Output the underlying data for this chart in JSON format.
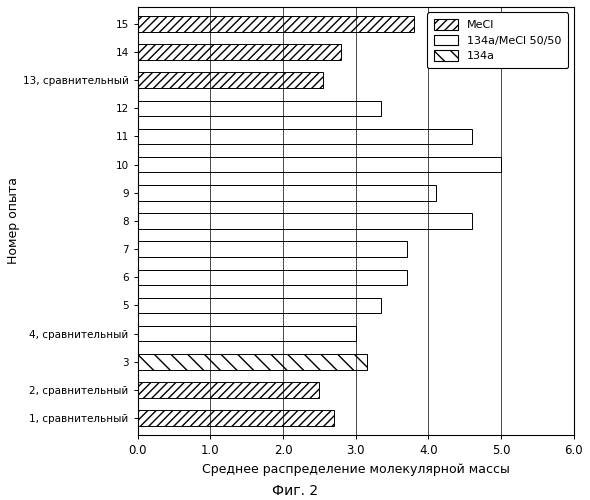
{
  "bars": [
    {
      "label": "1, сравнительный",
      "value": 2.7,
      "type": "MeCl"
    },
    {
      "label": "2, сравнительный",
      "value": 2.5,
      "type": "MeCl"
    },
    {
      "label": "3",
      "value": 3.15,
      "type": "134a"
    },
    {
      "label": "4, сравнительный",
      "value": 3.0,
      "type": "134a/MeCl 50/50"
    },
    {
      "label": "5",
      "value": 3.35,
      "type": "134a/MeCl 50/50"
    },
    {
      "label": "6",
      "value": 3.7,
      "type": "134a/MeCl 50/50"
    },
    {
      "label": "7",
      "value": 3.7,
      "type": "134a/MeCl 50/50"
    },
    {
      "label": "8",
      "value": 4.6,
      "type": "134a/MeCl 50/50"
    },
    {
      "label": "9",
      "value": 4.1,
      "type": "134a/MeCl 50/50"
    },
    {
      "label": "10",
      "value": 5.0,
      "type": "134a/MeCl 50/50"
    },
    {
      "label": "11",
      "value": 4.6,
      "type": "134a/MeCl 50/50"
    },
    {
      "label": "12",
      "value": 3.35,
      "type": "134a/MeCl 50/50"
    },
    {
      "label": "13, сравнительный",
      "value": 2.55,
      "type": "MeCl"
    },
    {
      "label": "14",
      "value": 2.8,
      "type": "MeCl"
    },
    {
      "label": "15",
      "value": 3.8,
      "type": "MeCl"
    }
  ],
  "type_styles": {
    "MeCl": {
      "hatch": "////",
      "facecolor": "white",
      "edgecolor": "black"
    },
    "134a/MeCl 50/50": {
      "hatch": "",
      "facecolor": "white",
      "edgecolor": "black"
    },
    "134a": {
      "hatch": "\\\\",
      "facecolor": "white",
      "edgecolor": "black"
    }
  },
  "legend_labels": [
    "MeCl",
    "134a/MeCl 50/50",
    "134a"
  ],
  "xlabel": "Среднее распределение молекулярной массы",
  "ylabel": "Номер опыта",
  "caption": "Фиг. 2",
  "xlim": [
    0.0,
    6.0
  ],
  "xticks": [
    0.0,
    1.0,
    2.0,
    3.0,
    4.0,
    5.0,
    6.0
  ],
  "background_color": "#ffffff",
  "bar_height": 0.55,
  "figsize": [
    5.9,
    5.0
  ],
  "dpi": 100
}
